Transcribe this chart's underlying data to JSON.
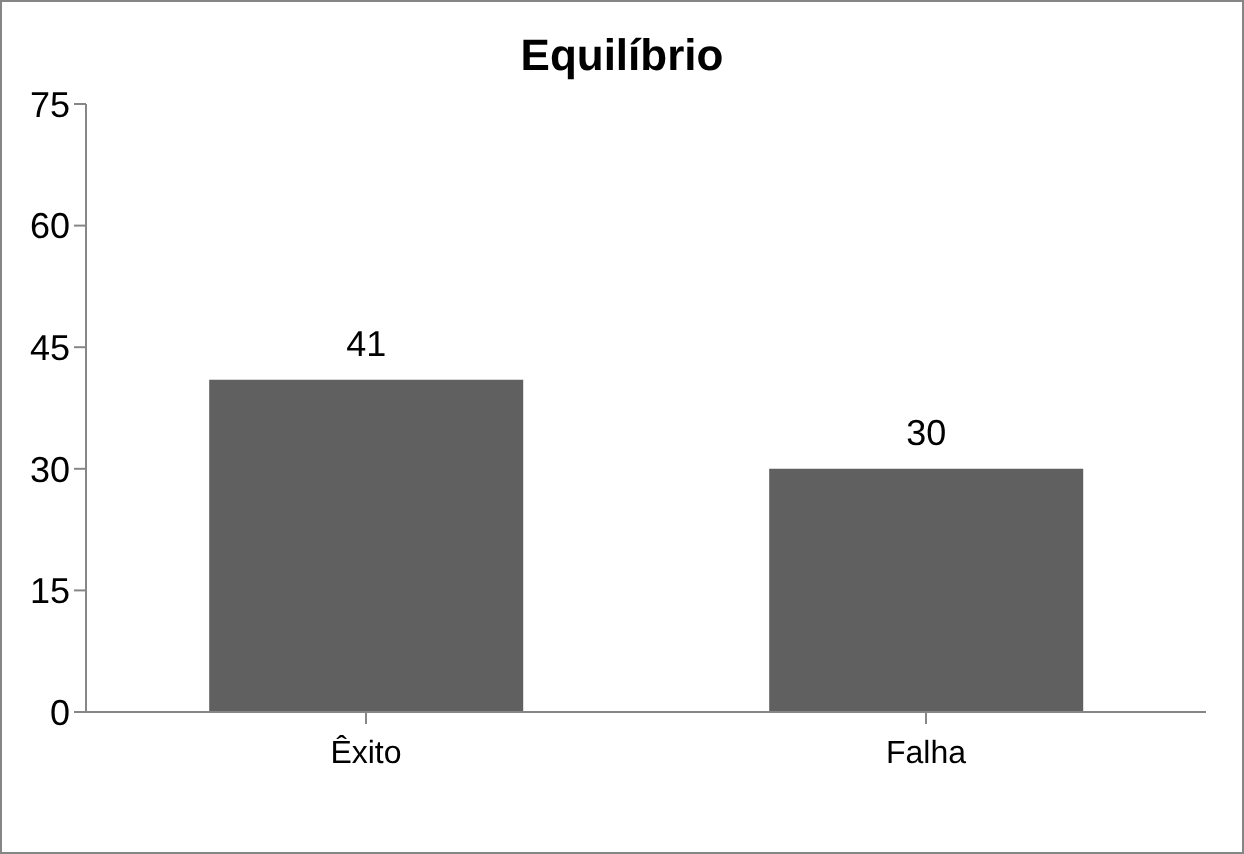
{
  "chart_data": {
    "type": "bar",
    "title": "Equilíbrio",
    "categories": [
      "Êxito",
      "Falha"
    ],
    "values": [
      41,
      30
    ],
    "color": "#606060",
    "ylim": [
      0,
      75
    ],
    "yticks": [
      0,
      15,
      30,
      45,
      60,
      75
    ],
    "data_labels": true
  }
}
